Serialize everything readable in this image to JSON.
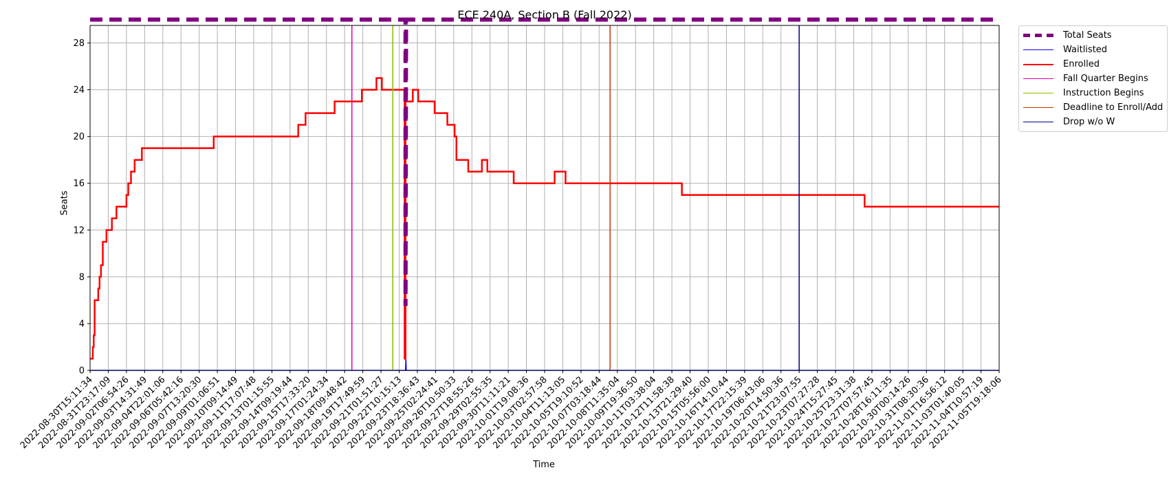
{
  "chart_data": {
    "type": "line",
    "title": "ECE 240A, Section B (Fall 2022)",
    "xlabel": "Time",
    "ylabel": "Seats",
    "ylim": [
      0,
      29.5
    ],
    "yticks": [
      0,
      4,
      8,
      12,
      16,
      20,
      24,
      28
    ],
    "grid": true,
    "legend_position": "outside-top-right",
    "x_tick_labels": [
      "2022-08-30T15:11:34",
      "2022-08-31T23:17:09",
      "2022-09-02T06:54:26",
      "2022-09-03T14:31:49",
      "2022-09-04T22:01:06",
      "2022-09-06T05:42:16",
      "2022-09-07T13:20:30",
      "2022-09-09T01:06:51",
      "2022-09-10T09:14:49",
      "2022-09-11T17:07:48",
      "2022-09-13T01:15:55",
      "2022-09-14T09:19:44",
      "2022-09-15T17:33:20",
      "2022-09-17T01:24:34",
      "2022-09-18T09:48:42",
      "2022-09-19T17:49:59",
      "2022-09-21T01:51:27",
      "2022-09-22T10:15:13",
      "2022-09-23T18:36:43",
      "2022-09-25T02:24:41",
      "2022-09-26T10:50:33",
      "2022-09-27T18:55:26",
      "2022-09-29T02:55:35",
      "2022-09-30T11:11:21",
      "2022-10-01T19:08:36",
      "2022-10-03T02:57:58",
      "2022-10-04T11:13:05",
      "2022-10-05T19:10:52",
      "2022-10-07T03:18:44",
      "2022-10-08T11:35:04",
      "2022-10-09T19:36:50",
      "2022-10-11T03:38:04",
      "2022-10-12T11:58:38",
      "2022-10-13T21:29:40",
      "2022-10-15T05:56:00",
      "2022-10-16T14:10:44",
      "2022-10-17T22:15:39",
      "2022-10-19T06:43:06",
      "2022-10-20T14:50:36",
      "2022-10-21T23:07:55",
      "2022-10-23T07:27:28",
      "2022-10-24T15:27:45",
      "2022-10-25T23:31:38",
      "2022-10-27T07:57:45",
      "2022-10-28T16:11:35",
      "2022-10-30T00:14:26",
      "2022-10-31T08:30:36",
      "2022-11-01T16:56:12",
      "2022-11-03T01:40:05",
      "2022-11-04T10:57:19",
      "2022-11-05T19:18:06"
    ],
    "x_domain": [
      0,
      50
    ],
    "series": [
      {
        "name": "Total Seats",
        "color": "#800080",
        "style": "dashed",
        "points": [
          [
            0,
            30
          ],
          [
            17.35,
            30
          ],
          [
            17.35,
            5.5
          ],
          [
            17.38,
            30
          ],
          [
            50,
            30
          ]
        ]
      },
      {
        "name": "Waitlisted",
        "color": "#0000ff",
        "style": "solid",
        "points": [
          [
            0,
            0
          ],
          [
            17.35,
            0
          ],
          [
            17.37,
            1
          ],
          [
            17.39,
            0
          ],
          [
            50,
            0
          ]
        ]
      },
      {
        "name": "Enrolled",
        "color": "#ff0000",
        "style": "step",
        "points": [
          [
            0,
            1
          ],
          [
            0.15,
            2
          ],
          [
            0.2,
            3
          ],
          [
            0.25,
            6
          ],
          [
            0.45,
            7
          ],
          [
            0.52,
            8
          ],
          [
            0.6,
            9
          ],
          [
            0.7,
            11
          ],
          [
            0.9,
            12
          ],
          [
            1.2,
            13
          ],
          [
            1.45,
            14
          ],
          [
            2.0,
            15
          ],
          [
            2.1,
            16
          ],
          [
            2.25,
            17
          ],
          [
            2.45,
            18
          ],
          [
            2.85,
            19
          ],
          [
            6.8,
            20
          ],
          [
            11.45,
            21
          ],
          [
            11.85,
            22
          ],
          [
            13.45,
            23
          ],
          [
            14.95,
            24
          ],
          [
            15.75,
            25
          ],
          [
            16.05,
            24
          ],
          [
            17.3,
            1
          ],
          [
            17.35,
            23
          ],
          [
            17.75,
            24
          ],
          [
            18.05,
            23
          ],
          [
            18.95,
            22
          ],
          [
            19.65,
            21
          ],
          [
            20.05,
            20
          ],
          [
            20.15,
            18
          ],
          [
            20.8,
            17
          ],
          [
            21.55,
            18
          ],
          [
            21.85,
            17
          ],
          [
            23.3,
            16
          ],
          [
            25.55,
            17
          ],
          [
            26.15,
            16
          ],
          [
            32.55,
            15
          ],
          [
            42.6,
            14
          ],
          [
            50,
            14
          ]
        ]
      }
    ],
    "vlines": [
      {
        "name": "Fall Quarter Begins",
        "color": "#dd00aa",
        "x": 14.4
      },
      {
        "name": "Instruction Begins",
        "color": "#88bb00",
        "x": 16.65
      },
      {
        "name": "Deadline to Enroll/Add",
        "color": "#cc3300",
        "x": 28.6
      },
      {
        "name": "Drop w/o W",
        "color": "#000088",
        "x": 39.0
      }
    ]
  }
}
